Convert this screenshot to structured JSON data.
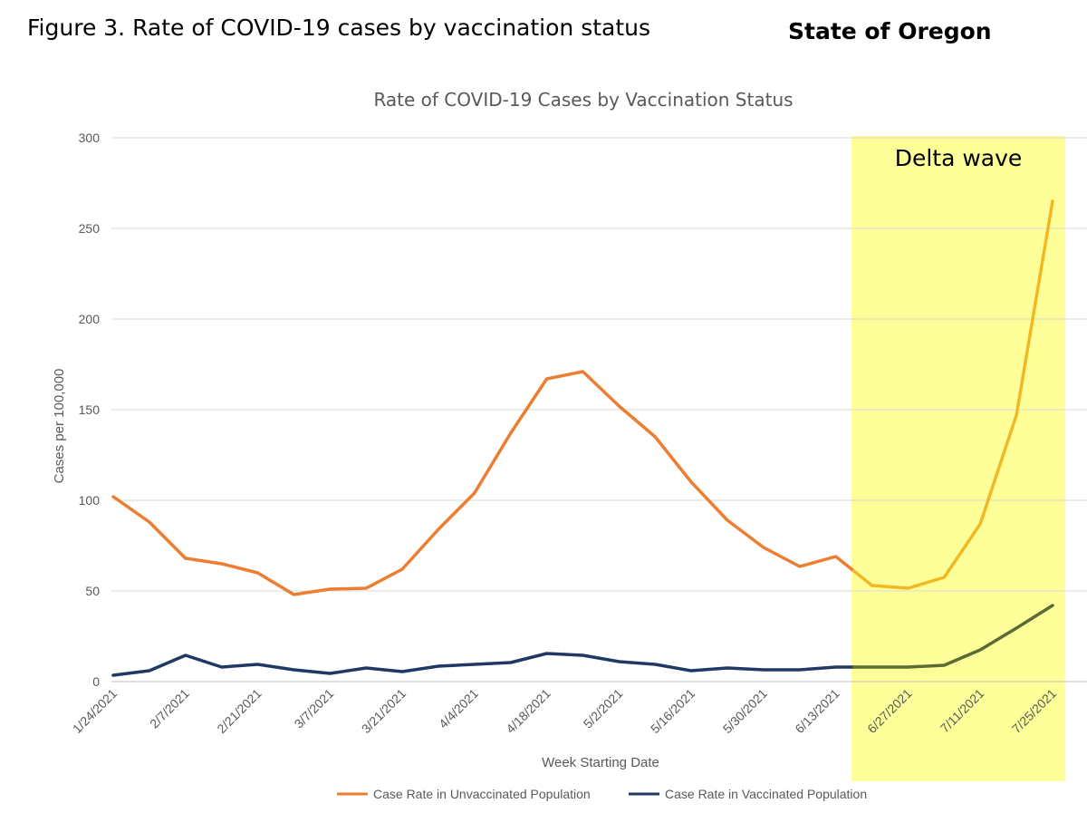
{
  "page": {
    "figure_caption": "Figure 3. Rate of COVID-19 cases by vaccination status",
    "state_label": "State of Oregon"
  },
  "chart_data": {
    "type": "line",
    "title": "Rate of COVID-19 Cases by Vaccination Status",
    "xlabel": "Week Starting Date",
    "ylabel": "Cases per 100,000",
    "ylim": [
      0,
      300
    ],
    "yticks": [
      0,
      50,
      100,
      150,
      200,
      250,
      300
    ],
    "grid": true,
    "legend_position": "bottom",
    "x": [
      "1/24/2021",
      "1/31/2021",
      "2/7/2021",
      "2/14/2021",
      "2/21/2021",
      "2/28/2021",
      "3/7/2021",
      "3/14/2021",
      "3/21/2021",
      "3/28/2021",
      "4/4/2021",
      "4/11/2021",
      "4/18/2021",
      "4/25/2021",
      "5/2/2021",
      "5/9/2021",
      "5/16/2021",
      "5/23/2021",
      "5/30/2021",
      "6/6/2021",
      "6/13/2021",
      "6/20/2021",
      "6/27/2021",
      "7/4/2021",
      "7/11/2021",
      "7/18/2021",
      "7/25/2021"
    ],
    "x_tick_labels": [
      "1/24/2021",
      "2/7/2021",
      "2/21/2021",
      "3/7/2021",
      "3/21/2021",
      "4/4/2021",
      "4/18/2021",
      "5/2/2021",
      "5/16/2021",
      "5/30/2021",
      "6/13/2021",
      "6/27/2021",
      "7/11/2021",
      "7/25/2021"
    ],
    "series": [
      {
        "name": "Case Rate in Unvaccinated Population",
        "color": "#ED7D31",
        "highlight_color": "#F2B824",
        "values": [
          102,
          88,
          68,
          65,
          60,
          48,
          51,
          51.5,
          62,
          84,
          104,
          137,
          167,
          171,
          152,
          135,
          110,
          89,
          74,
          63.5,
          69,
          53,
          51.5,
          57.5,
          87,
          147,
          265
        ]
      },
      {
        "name": "Case Rate in Vaccinated Population",
        "color": "#203864",
        "highlight_color": "#5A6B33",
        "values": [
          3.5,
          6,
          14.5,
          8,
          9.5,
          6.5,
          4.5,
          7.5,
          5.5,
          8.5,
          9.5,
          10.5,
          15.5,
          14.5,
          11,
          9.5,
          6,
          7.5,
          6.5,
          6.5,
          8,
          8,
          8,
          9,
          17.5,
          29.5,
          42
        ]
      }
    ],
    "annotations": [
      {
        "text": "Delta wave",
        "x_start": "6/13/2021",
        "color": "#FFFF99"
      }
    ]
  }
}
